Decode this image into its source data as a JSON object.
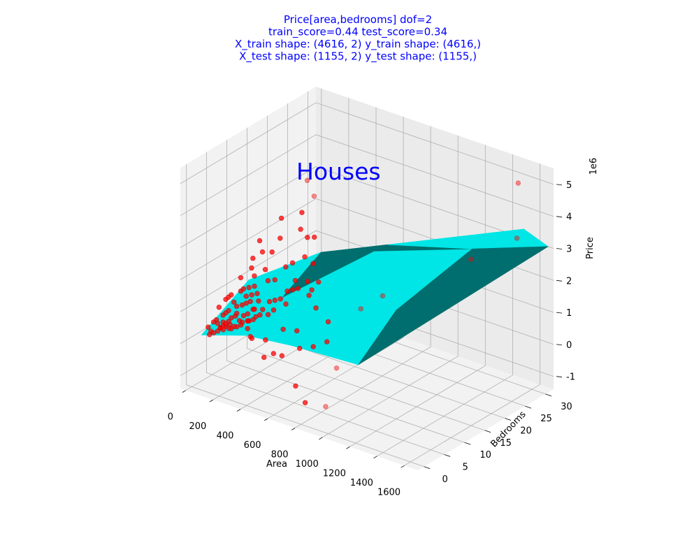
{
  "chart_data": {
    "type": "scatter",
    "title_lines": [
      "Price[area,bedrooms]  dof=2",
      "train_score=0.44  test_score=0.34",
      "X_train shape: (4616, 2)  y_train shape: (4616,)",
      "X_test shape: (1155, 2)  y_test shape: (1155,)"
    ],
    "annotation": "Houses",
    "xlabel": "Area",
    "ylabel": "Bedrooms",
    "zlabel": "Price",
    "z_offset_label": "1e6",
    "x_ticks": [
      0,
      200,
      400,
      600,
      800,
      1000,
      1200,
      1400,
      1600
    ],
    "y_ticks": [
      0,
      5,
      10,
      15,
      20,
      25,
      30
    ],
    "z_ticks": [
      -1,
      0,
      1,
      2,
      3,
      4,
      5
    ],
    "xlim": [
      -40,
      1700
    ],
    "ylim": [
      -1.5,
      32
    ],
    "zlim": [
      -1.4,
      5.5
    ],
    "grid": true,
    "colors": {
      "points": "#ff0000",
      "surface_light": "#00e5e5",
      "surface_dark": "#006e6e",
      "title": "#0000ff"
    },
    "series": [
      {
        "name": "",
        "kind": "scatter",
        "points": [
          [
            60,
            2,
            0.4
          ],
          [
            70,
            3,
            0.5
          ],
          [
            80,
            2,
            0.3
          ],
          [
            90,
            3,
            0.6
          ],
          [
            100,
            3,
            0.5
          ],
          [
            110,
            4,
            0.7
          ],
          [
            120,
            3,
            0.4
          ],
          [
            130,
            4,
            0.8
          ],
          [
            140,
            3,
            0.6
          ],
          [
            150,
            4,
            0.9
          ],
          [
            160,
            3,
            0.5
          ],
          [
            170,
            4,
            0.7
          ],
          [
            180,
            5,
            1.0
          ],
          [
            190,
            3,
            0.6
          ],
          [
            200,
            4,
            0.8
          ],
          [
            210,
            4,
            0.9
          ],
          [
            220,
            5,
            1.1
          ],
          [
            230,
            4,
            0.7
          ],
          [
            240,
            3,
            0.6
          ],
          [
            250,
            5,
            1.2
          ],
          [
            260,
            4,
            0.9
          ],
          [
            270,
            3,
            0.7
          ],
          [
            280,
            5,
            1.3
          ],
          [
            290,
            4,
            1.0
          ],
          [
            300,
            4,
            0.8
          ],
          [
            310,
            5,
            1.1
          ],
          [
            320,
            3,
            0.9
          ],
          [
            330,
            4,
            1.2
          ],
          [
            340,
            5,
            1.4
          ],
          [
            350,
            4,
            1.0
          ],
          [
            80,
            4,
            0.9
          ],
          [
            100,
            5,
            1.1
          ],
          [
            120,
            5,
            1.2
          ],
          [
            140,
            5,
            1.3
          ],
          [
            160,
            5,
            1.1
          ],
          [
            180,
            6,
            1.4
          ],
          [
            200,
            6,
            1.5
          ],
          [
            220,
            6,
            1.3
          ],
          [
            240,
            6,
            1.6
          ],
          [
            260,
            6,
            1.4
          ],
          [
            280,
            6,
            1.7
          ],
          [
            300,
            6,
            1.5
          ],
          [
            150,
            2,
            0.5
          ],
          [
            170,
            2,
            0.6
          ],
          [
            190,
            2,
            0.7
          ],
          [
            210,
            2,
            0.8
          ],
          [
            230,
            2,
            0.6
          ],
          [
            250,
            2,
            0.7
          ],
          [
            100,
            1,
            0.3
          ],
          [
            130,
            1,
            0.4
          ],
          [
            160,
            1,
            0.5
          ],
          [
            200,
            1,
            0.6
          ],
          [
            240,
            1,
            0.7
          ],
          [
            280,
            3,
            0.8
          ],
          [
            320,
            3,
            0.9
          ],
          [
            360,
            3,
            1.0
          ],
          [
            380,
            4,
            1.1
          ],
          [
            400,
            4,
            1.3
          ],
          [
            420,
            5,
            1.5
          ],
          [
            440,
            4,
            1.2
          ],
          [
            460,
            5,
            1.6
          ],
          [
            480,
            4,
            1.4
          ],
          [
            500,
            5,
            1.7
          ],
          [
            520,
            6,
            1.9
          ],
          [
            540,
            5,
            1.6
          ],
          [
            560,
            6,
            2.0
          ],
          [
            600,
            6,
            2.1
          ],
          [
            640,
            7,
            2.3
          ],
          [
            680,
            6,
            2.0
          ],
          [
            720,
            7,
            2.4
          ],
          [
            760,
            5,
            1.8
          ],
          [
            400,
            7,
            2.0
          ],
          [
            450,
            8,
            2.4
          ],
          [
            350,
            7,
            1.9
          ],
          [
            300,
            8,
            2.1
          ],
          [
            500,
            8,
            2.6
          ],
          [
            550,
            7,
            2.2
          ],
          [
            200,
            8,
            2.0
          ],
          [
            250,
            7,
            1.9
          ],
          [
            150,
            7,
            1.7
          ],
          [
            350,
            3,
            0.4
          ],
          [
            450,
            3,
            0.5
          ],
          [
            550,
            4,
            0.9
          ],
          [
            650,
            4,
            1.0
          ],
          [
            600,
            2,
            0.3
          ],
          [
            700,
            3,
            0.6
          ],
          [
            800,
            3,
            0.8
          ],
          [
            900,
            3,
            1.1
          ],
          [
            1000,
            2,
            0.5
          ],
          [
            850,
            5,
            1.5
          ],
          [
            500,
            10,
            3.5
          ],
          [
            450,
            12,
            3.8
          ],
          [
            520,
            11,
            3.2
          ],
          [
            480,
            14,
            4.2
          ],
          [
            400,
            15,
            4.5
          ],
          [
            560,
            9,
            2.8
          ],
          [
            300,
            12,
            3.4
          ],
          [
            350,
            10,
            3.0
          ],
          [
            600,
            10,
            3.4
          ],
          [
            650,
            8,
            2.8
          ],
          [
            700,
            6,
            2.2
          ],
          [
            420,
            6,
            -0.2
          ],
          [
            380,
            5,
            -0.3
          ],
          [
            700,
            2,
            -0.5
          ],
          [
            800,
            1,
            -0.8
          ],
          [
            950,
            1,
            -0.7
          ],
          [
            1000,
            8,
            1.9
          ],
          [
            1100,
            10,
            2.3
          ],
          [
            1450,
            20,
            3.2
          ],
          [
            1550,
            28,
            3.4
          ],
          [
            1500,
            30,
            4.9
          ],
          [
            250,
            9,
            2.5
          ],
          [
            200,
            10,
            2.7
          ],
          [
            180,
            9,
            2.2
          ],
          [
            320,
            9,
            2.6
          ],
          [
            280,
            5,
            0.2
          ],
          [
            230,
            6,
            0.3
          ]
        ]
      },
      {
        "name": "",
        "kind": "surface",
        "vertices": [
          [
            40,
            1,
            0.2
          ],
          [
            340,
            2,
            0.55
          ],
          [
            640,
            3,
            0.6
          ],
          [
            1100,
            4,
            0.6
          ],
          [
            180,
            8,
            1.6
          ],
          [
            450,
            7,
            1.5
          ],
          [
            800,
            8,
            1.8
          ],
          [
            1200,
            10,
            2.0
          ],
          [
            500,
            15,
            2.4
          ],
          [
            900,
            18,
            3.0
          ],
          [
            1400,
            22,
            3.3
          ],
          [
            1660,
            32,
            3.0
          ],
          [
            1660,
            26,
            4.0
          ]
        ]
      }
    ]
  }
}
